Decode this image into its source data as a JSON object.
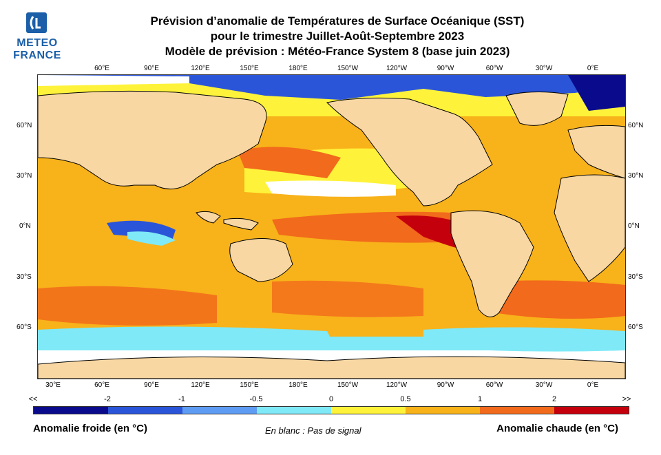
{
  "logo": {
    "line1": "METEO",
    "line2": "FRANCE"
  },
  "title": {
    "line1": "Prévision d’anomalie de Températures de Surface Océanique (SST)",
    "line2": "pour le trimestre Juillet-Août-Septembre 2023",
    "line3": "Modèle de prévision : Météo-France System 8 (base juin 2023)"
  },
  "map": {
    "top_lon_labels": [
      "60°E",
      "90°E",
      "120°E",
      "150°E",
      "180°E",
      "150°W",
      "120°W",
      "90°W",
      "60°W",
      "30°W",
      "0°E"
    ],
    "bottom_lon_labels": [
      "30°E",
      "60°E",
      "90°E",
      "120°E",
      "150°E",
      "180°E",
      "150°W",
      "120°W",
      "90°W",
      "60°W",
      "30°W",
      "0°E"
    ],
    "lat_labels": [
      "60°N",
      "30°N",
      "0°N",
      "30°S",
      "60°S"
    ],
    "colors": {
      "land": "#f8d7a3",
      "no_signal": "#ffffff"
    }
  },
  "colorbar": {
    "tick_labels": [
      "<<",
      "-2",
      "-1",
      "-0.5",
      "0",
      "0.5",
      "1",
      "2",
      ">>"
    ],
    "colors": [
      "#0a0a8c",
      "#2b55d8",
      "#5e9bf2",
      "#7fe9f7",
      "#fef33a",
      "#f8b21a",
      "#f26a1b",
      "#c4000d"
    ]
  },
  "legend": {
    "cold": "Anomalie froide (en °C)",
    "no_signal": "En blanc : Pas de signal",
    "warm": "Anomalie chaude (en °C)"
  }
}
